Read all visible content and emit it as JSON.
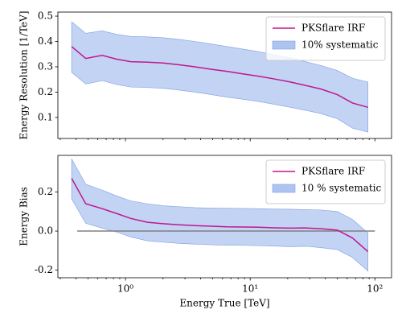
{
  "chart_data": [
    {
      "type": "line",
      "ylabel": "Energy Resolution [1/TeV]",
      "xscale": "log",
      "legend": "upper right",
      "x": [
        0.37,
        0.48,
        0.65,
        0.85,
        1.1,
        1.5,
        2.0,
        2.7,
        3.6,
        4.9,
        6.5,
        8.7,
        11.6,
        15.6,
        21,
        28,
        37,
        50,
        66,
        88
      ],
      "series": [
        {
          "name": "PKSflare IRF",
          "color": "#c0178f",
          "values": [
            0.38,
            0.333,
            0.345,
            0.33,
            0.32,
            0.318,
            0.315,
            0.308,
            0.3,
            0.29,
            0.282,
            0.272,
            0.263,
            0.252,
            0.24,
            0.226,
            0.212,
            0.19,
            0.157,
            0.14
          ]
        }
      ],
      "band": {
        "name": "10% systematic",
        "color": "#aec4f0",
        "edge": "#7f9ee0",
        "upper": [
          0.478,
          0.432,
          0.442,
          0.428,
          0.42,
          0.418,
          0.415,
          0.408,
          0.4,
          0.39,
          0.38,
          0.37,
          0.36,
          0.348,
          0.335,
          0.32,
          0.305,
          0.285,
          0.255,
          0.24
        ],
        "lower": [
          0.278,
          0.232,
          0.245,
          0.23,
          0.22,
          0.218,
          0.215,
          0.208,
          0.2,
          0.19,
          0.18,
          0.172,
          0.163,
          0.152,
          0.14,
          0.128,
          0.115,
          0.095,
          0.058,
          0.042
        ]
      },
      "xlim": [
        0.287,
        136
      ],
      "xticks": [
        1,
        10,
        100
      ],
      "xminorticks": [
        0.3,
        0.4,
        0.5,
        0.6,
        0.7,
        0.8,
        0.9,
        2,
        3,
        4,
        5,
        6,
        7,
        8,
        9,
        20,
        30,
        40,
        50,
        60,
        70,
        80,
        90
      ],
      "ylim": [
        0.017,
        0.516
      ],
      "yticks": [
        0.1,
        0.2,
        0.3,
        0.4,
        0.5
      ]
    },
    {
      "type": "line",
      "ylabel": "Energy Bias",
      "xlabel": "Energy True [TeV]",
      "xscale": "log",
      "legend": "upper right",
      "x": [
        0.37,
        0.48,
        0.65,
        0.85,
        1.1,
        1.5,
        2.0,
        2.7,
        3.6,
        4.9,
        6.5,
        8.7,
        11.6,
        15.6,
        21,
        28,
        37,
        50,
        66,
        88
      ],
      "series": [
        {
          "name": "PKSflare IRF",
          "color": "#c0178f",
          "values": [
            0.27,
            0.14,
            0.115,
            0.09,
            0.065,
            0.045,
            0.038,
            0.032,
            0.028,
            0.025,
            0.022,
            0.021,
            0.02,
            0.017,
            0.015,
            0.016,
            0.012,
            0.005,
            -0.035,
            -0.105
          ]
        }
      ],
      "band": {
        "name": "10 % systematic",
        "color": "#aec4f0",
        "edge": "#7f9ee0",
        "upper": [
          0.37,
          0.24,
          0.21,
          0.18,
          0.155,
          0.14,
          0.13,
          0.125,
          0.12,
          0.118,
          0.117,
          0.116,
          0.115,
          0.113,
          0.112,
          0.11,
          0.108,
          0.1,
          0.06,
          -0.01
        ],
        "lower": [
          0.165,
          0.04,
          0.015,
          -0.005,
          -0.03,
          -0.05,
          -0.057,
          -0.063,
          -0.067,
          -0.07,
          -0.072,
          -0.073,
          -0.075,
          -0.077,
          -0.08,
          -0.078,
          -0.085,
          -0.095,
          -0.135,
          -0.205
        ]
      },
      "hline": {
        "y": 0,
        "xmin": 0.41,
        "xmax": 100,
        "color": "#808080"
      },
      "xlim": [
        0.287,
        136
      ],
      "xticks": [
        {
          "value": 1,
          "label": "10⁰"
        },
        {
          "value": 10,
          "label": "10¹"
        },
        {
          "value": 100,
          "label": "10²"
        }
      ],
      "xminorticks": [
        0.3,
        0.4,
        0.5,
        0.6,
        0.7,
        0.8,
        0.9,
        2,
        3,
        4,
        5,
        6,
        7,
        8,
        9,
        20,
        30,
        40,
        50,
        60,
        70,
        80,
        90
      ],
      "ylim": [
        -0.239,
        0.388
      ],
      "yticks": [
        -0.2,
        {
          "value": 0,
          "label": "0.0"
        },
        0.2
      ]
    }
  ]
}
